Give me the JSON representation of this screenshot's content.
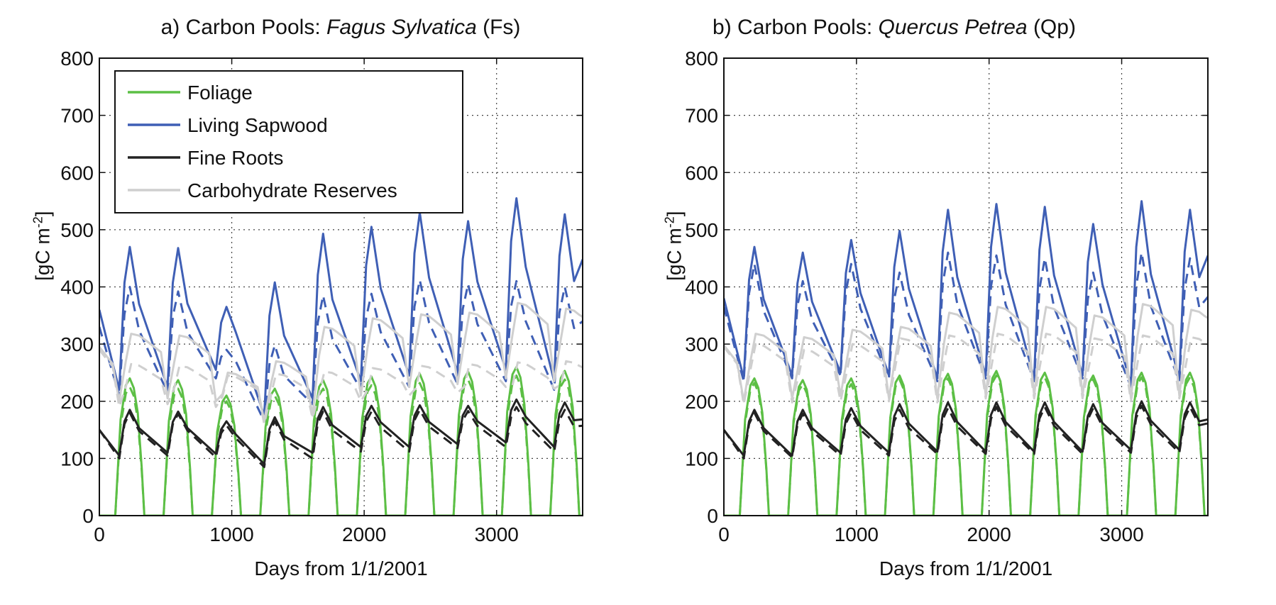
{
  "chart_data": [
    {
      "type": "line",
      "title_prefix": "a) Carbon Pools: ",
      "title_species": "Fagus Sylvatica",
      "title_suffix": " (Fs)",
      "xlabel": "Days from 1/1/2001",
      "ylabel_main": "[gC m",
      "ylabel_sup": "-2",
      "ylabel_end": "]",
      "xlim": [
        0,
        3650
      ],
      "ylim": [
        0,
        800
      ],
      "xticks": [
        0,
        1000,
        2000,
        3000
      ],
      "yticks": [
        0,
        100,
        200,
        300,
        400,
        500,
        600,
        700,
        800
      ],
      "grid": true,
      "legend_position": "top-left",
      "series": [
        {
          "name": "Foliage",
          "color": "#5cbf45",
          "style": "solid",
          "peaks": [
            240,
            237,
            210,
            222,
            237,
            243,
            248,
            252,
            260,
            253
          ]
        },
        {
          "name": "Foliage",
          "color": "#5cbf45",
          "style": "dashed",
          "in_legend": false,
          "peaks": [
            225,
            222,
            200,
            210,
            222,
            228,
            232,
            238,
            245,
            238
          ]
        },
        {
          "name": "Living Sapwood",
          "color": "#3f5fb5",
          "style": "solid",
          "start": 360,
          "peaks": [
            470,
            468,
            365,
            408,
            493,
            505,
            530,
            515,
            555,
            527
          ],
          "troughs": [
            220,
            225,
            255,
            175,
            205,
            235,
            245,
            250,
            255,
            235
          ]
        },
        {
          "name": "Living Sapwood",
          "color": "#3f5fb5",
          "style": "dashed",
          "in_legend": false,
          "start": 330,
          "peaks": [
            400,
            392,
            290,
            298,
            385,
            388,
            412,
            405,
            410,
            400
          ],
          "troughs": [
            210,
            215,
            240,
            165,
            195,
            220,
            225,
            230,
            235,
            220
          ]
        },
        {
          "name": "Fine Roots",
          "color": "#222222",
          "style": "solid",
          "start": 150,
          "peaks": [
            185,
            182,
            165,
            172,
            190,
            192,
            193,
            192,
            203,
            198
          ],
          "troughs": [
            105,
            110,
            108,
            90,
            110,
            120,
            120,
            125,
            128,
            120
          ]
        },
        {
          "name": "Fine Roots",
          "color": "#222222",
          "style": "dashed",
          "in_legend": false,
          "start": 150,
          "peaks": [
            180,
            178,
            158,
            165,
            182,
            182,
            185,
            183,
            190,
            185
          ],
          "troughs": [
            100,
            105,
            102,
            85,
            100,
            112,
            112,
            118,
            120,
            112
          ]
        },
        {
          "name": "Carbohydrate Reserves",
          "color": "#cfcfcf",
          "style": "solid",
          "start": 295,
          "plateau": [
            318,
            315,
            250,
            270,
            330,
            345,
            352,
            355,
            372,
            362
          ],
          "troughs": [
            200,
            205,
            200,
            165,
            175,
            210,
            225,
            230,
            240,
            235
          ]
        },
        {
          "name": "Carbohydrate Reserves",
          "color": "#cfcfcf",
          "style": "dashed",
          "in_legend": false,
          "start": 290,
          "plateau": [
            265,
            262,
            245,
            248,
            252,
            258,
            262,
            265,
            268,
            270
          ],
          "troughs": [
            190,
            195,
            190,
            160,
            170,
            200,
            210,
            215,
            225,
            222
          ]
        }
      ]
    },
    {
      "type": "line",
      "title_prefix": "b) Carbon Pools: ",
      "title_species": "Quercus Petrea",
      "title_suffix": " (Qp)",
      "xlabel": "Days from 1/1/2001",
      "ylabel_main": "[gC m",
      "ylabel_sup": "-2",
      "ylabel_end": "]",
      "xlim": [
        0,
        3650
      ],
      "ylim": [
        0,
        800
      ],
      "xticks": [
        0,
        1000,
        2000,
        3000
      ],
      "yticks": [
        0,
        100,
        200,
        300,
        400,
        500,
        600,
        700,
        800
      ],
      "grid": true,
      "series": [
        {
          "name": "Foliage",
          "color": "#5cbf45",
          "style": "solid",
          "peaks": [
            240,
            237,
            240,
            245,
            248,
            253,
            250,
            245,
            250,
            250
          ]
        },
        {
          "name": "Foliage",
          "color": "#5cbf45",
          "style": "dashed",
          "peaks": [
            232,
            230,
            230,
            238,
            240,
            245,
            242,
            238,
            242,
            242
          ]
        },
        {
          "name": "Living Sapwood",
          "color": "#3f5fb5",
          "style": "solid",
          "start": 380,
          "peaks": [
            470,
            460,
            482,
            498,
            535,
            545,
            540,
            510,
            550,
            535
          ],
          "troughs": [
            240,
            245,
            250,
            245,
            240,
            245,
            240,
            245,
            230,
            240
          ]
        },
        {
          "name": "Living Sapwood",
          "color": "#3f5fb5",
          "style": "dashed",
          "start": 365,
          "peaks": [
            440,
            410,
            440,
            425,
            460,
            455,
            450,
            425,
            460,
            450
          ],
          "troughs": [
            235,
            240,
            245,
            240,
            235,
            240,
            235,
            240,
            225,
            235
          ]
        },
        {
          "name": "Fine Roots",
          "color": "#222222",
          "style": "solid",
          "start": 150,
          "peaks": [
            185,
            185,
            188,
            195,
            198,
            198,
            198,
            195,
            200,
            198
          ],
          "troughs": [
            105,
            105,
            110,
            110,
            112,
            112,
            112,
            112,
            115,
            115
          ]
        },
        {
          "name": "Fine Roots",
          "color": "#222222",
          "style": "dashed",
          "start": 150,
          "peaks": [
            180,
            178,
            180,
            185,
            188,
            190,
            190,
            188,
            192,
            190
          ],
          "troughs": [
            100,
            102,
            105,
            105,
            108,
            108,
            108,
            108,
            110,
            110
          ]
        },
        {
          "name": "Carbohydrate Reserves",
          "color": "#cfcfcf",
          "style": "solid",
          "start": 298,
          "plateau": [
            318,
            312,
            325,
            330,
            355,
            365,
            365,
            350,
            370,
            360
          ],
          "troughs": [
            200,
            205,
            210,
            205,
            205,
            210,
            210,
            210,
            205,
            210
          ]
        },
        {
          "name": "Carbohydrate Reserves",
          "color": "#cfcfcf",
          "style": "dashed",
          "start": 295,
          "plateau": [
            300,
            290,
            300,
            310,
            315,
            318,
            318,
            310,
            315,
            312
          ],
          "troughs": [
            195,
            198,
            200,
            200,
            198,
            205,
            205,
            205,
            200,
            205
          ]
        }
      ]
    }
  ]
}
